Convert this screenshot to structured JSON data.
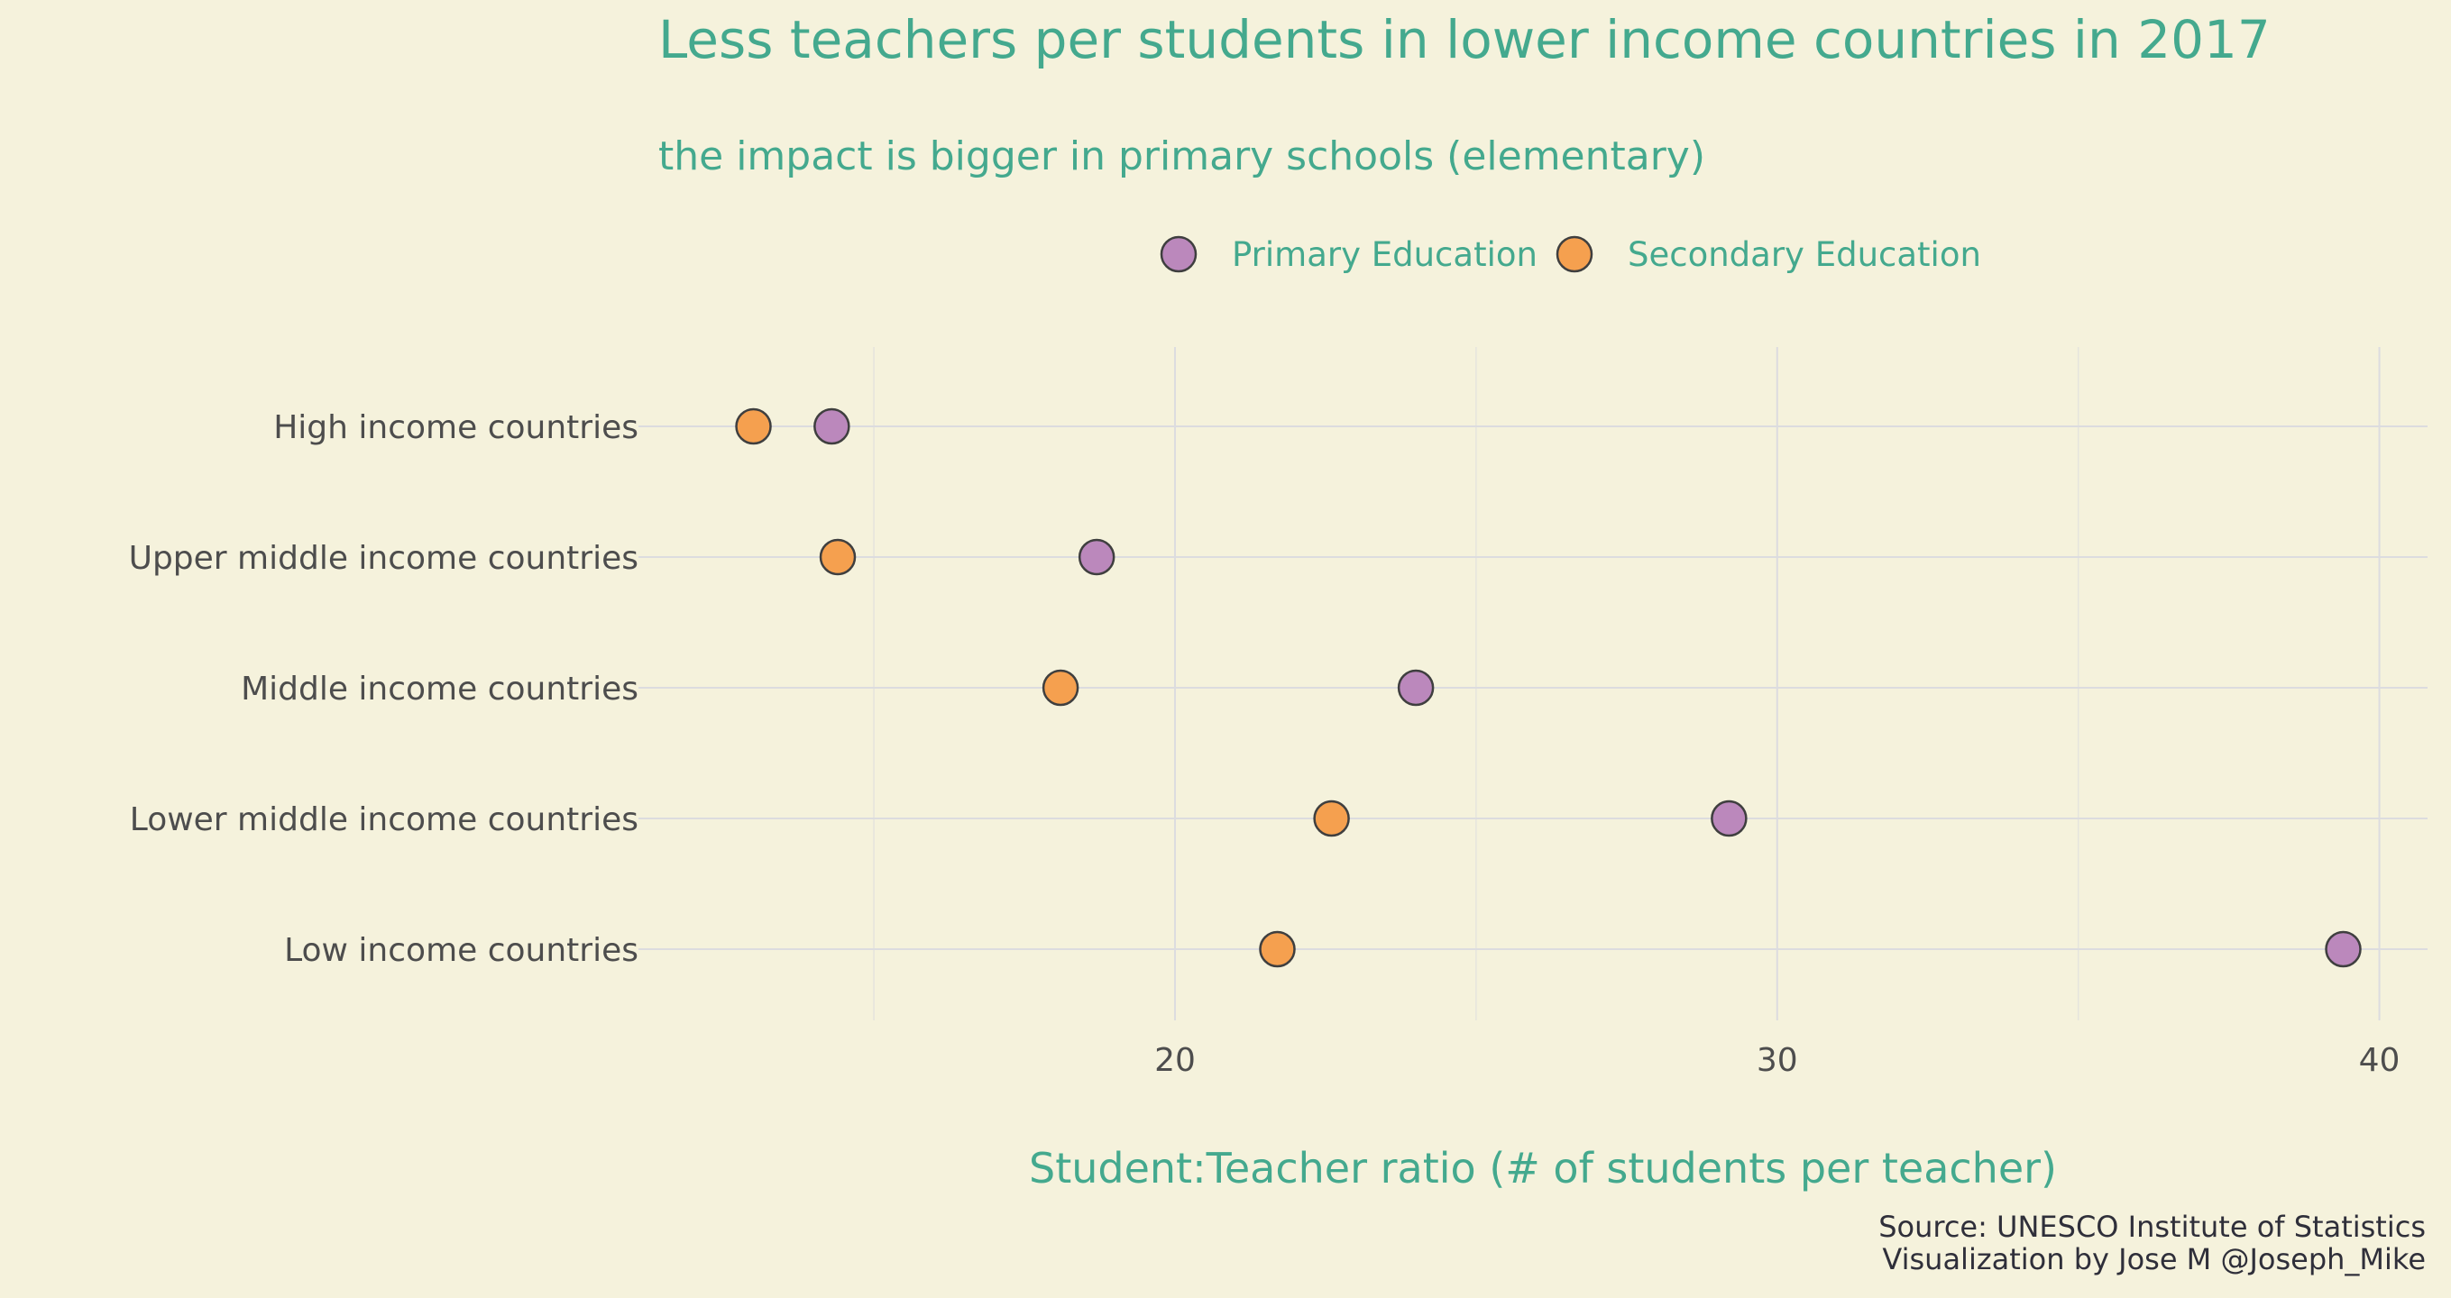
{
  "chart_data": {
    "type": "scatter",
    "title": "Less teachers per students in lower income countries in 2017",
    "subtitle": "the impact is bigger in primary schools (elementary)",
    "xlabel": "Student:Teacher ratio (# of students per teacher)",
    "ylabel": "",
    "xlim": [
      11.3,
      40.8
    ],
    "x_ticks": [
      20,
      30,
      40
    ],
    "x_tick_labels": [
      "20",
      "30",
      "40"
    ],
    "x_minor_ticks": [
      15,
      25,
      35
    ],
    "categories": [
      "High income countries",
      "Upper middle income countries",
      "Middle income countries",
      "Lower middle income countries",
      "Low income countries"
    ],
    "series": [
      {
        "name": "Primary Education",
        "color": "#bb88bc",
        "values": [
          14.3,
          18.7,
          24.0,
          29.2,
          39.4
        ]
      },
      {
        "name": "Secondary Education",
        "color": "#f5a04f",
        "values": [
          13.0,
          14.4,
          18.1,
          22.6,
          21.7
        ]
      }
    ],
    "legend_position": "top",
    "grid": true,
    "caption": [
      "Source: UNESCO Institute of Statistics",
      "Visualization by Jose M @Joseph_Mike"
    ],
    "colors": {
      "background": "#f5f2dc",
      "title": "#44a98e",
      "grid": "#dcdcdf",
      "tick_text": "#4d4d4d",
      "caption": "#2f2f3a",
      "marker_outline": "#3f3f3f"
    }
  }
}
